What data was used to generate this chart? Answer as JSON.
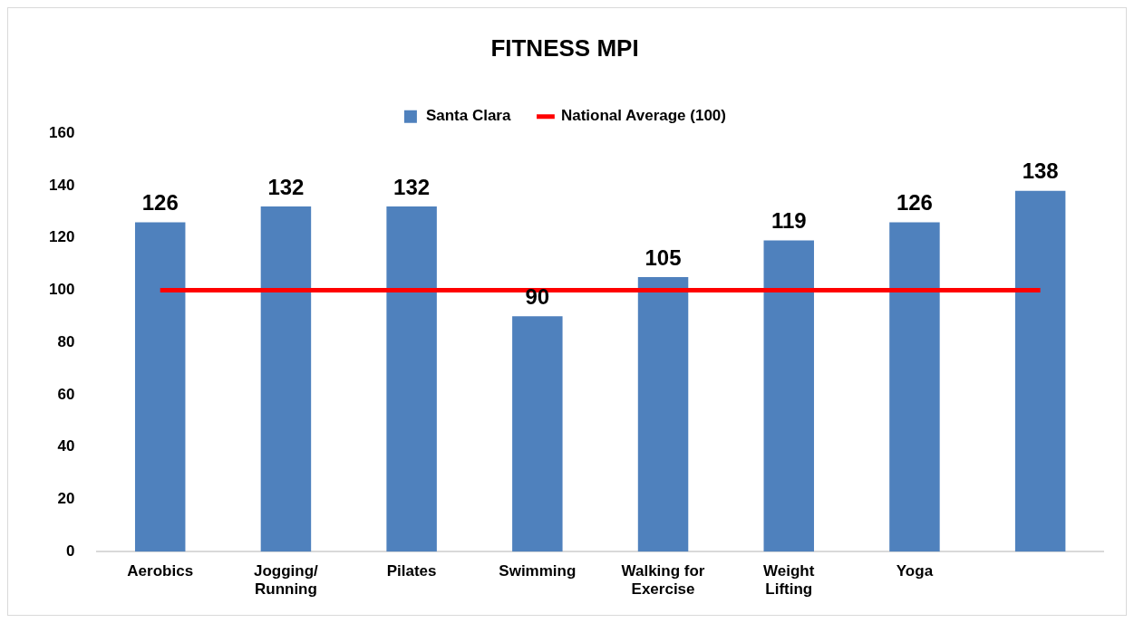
{
  "chart_data": {
    "type": "bar",
    "title": "FITNESS MPI",
    "categories": [
      "Aerobics",
      "Jogging/ Running",
      "Pilates",
      "Swimming",
      "Walking for Exercise",
      "Weight Lifting",
      "Yoga",
      null
    ],
    "series": [
      {
        "name": "Santa Clara",
        "color": "#4f81bd",
        "values": [
          126,
          132,
          132,
          90,
          105,
          119,
          126,
          138
        ],
        "value_labels": [
          "126",
          "132",
          "132",
          "90",
          "105",
          "119",
          "126",
          "138"
        ]
      },
      {
        "name": "National Average (100)",
        "type": "line",
        "color": "#ff0000",
        "values": [
          100,
          100,
          100,
          100,
          100,
          100,
          100,
          100
        ],
        "marker": "none"
      }
    ],
    "ylim": [
      0,
      160
    ],
    "yticks": [
      0,
      20,
      40,
      60,
      80,
      100,
      120,
      140,
      160
    ],
    "grid": false,
    "legend": "top"
  }
}
